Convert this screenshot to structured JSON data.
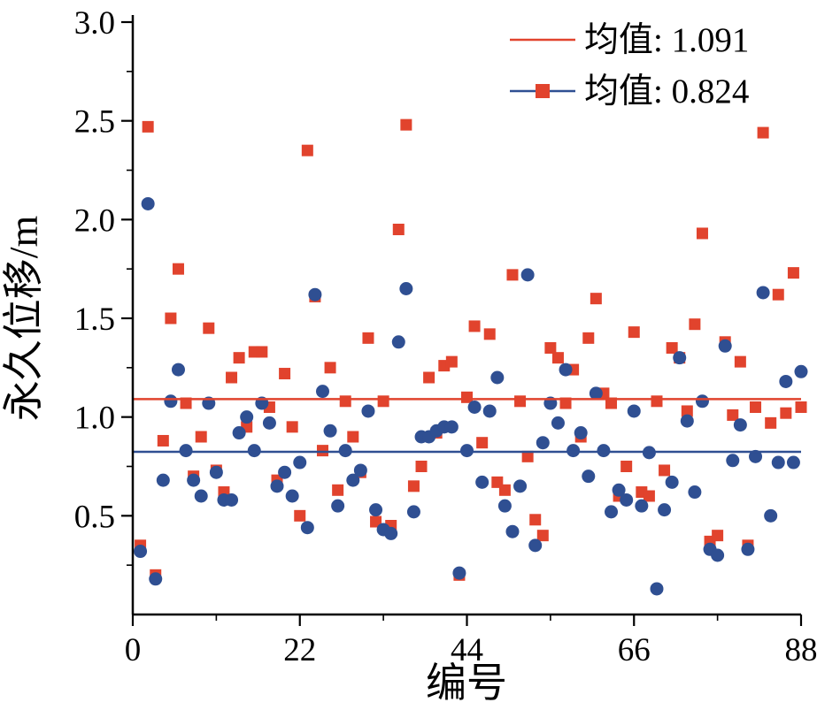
{
  "chart_data": {
    "type": "scatter",
    "title": "",
    "xlabel": "编号",
    "ylabel": "永久位移/m",
    "xlim": [
      0,
      88
    ],
    "ylim": [
      0,
      3.0
    ],
    "xticks": [
      0,
      22,
      44,
      66,
      88
    ],
    "yticks": [
      0.5,
      1.0,
      1.5,
      2.0,
      2.5,
      3.0
    ],
    "x_minor_ticks": [
      11,
      33,
      55,
      77
    ],
    "y_minor_ticks": [
      0.25,
      0.75,
      1.25,
      1.75,
      2.25,
      2.75
    ],
    "grid": false,
    "legend_position": "top-right",
    "series": [
      {
        "legend_label": "均值: 1.091",
        "marker": "square",
        "color": "#e1432d",
        "mean": 1.091,
        "mean_line_color": "#e1432d",
        "x": [
          1,
          2,
          3,
          4,
          5,
          6,
          7,
          8,
          9,
          10,
          11,
          12,
          13,
          14,
          15,
          16,
          17,
          18,
          19,
          20,
          21,
          22,
          23,
          24,
          25,
          26,
          27,
          28,
          29,
          30,
          31,
          32,
          33,
          34,
          35,
          36,
          37,
          38,
          39,
          40,
          41,
          42,
          43,
          44,
          45,
          46,
          47,
          48,
          49,
          50,
          51,
          52,
          53,
          54,
          55,
          56,
          57,
          58,
          59,
          60,
          61,
          62,
          63,
          64,
          65,
          66,
          67,
          68,
          69,
          70,
          71,
          72,
          73,
          74,
          75,
          76,
          77,
          78,
          79,
          80,
          81,
          82,
          83,
          84,
          85,
          86,
          87,
          88
        ],
        "y": [
          0.35,
          2.47,
          0.2,
          0.88,
          1.5,
          1.75,
          1.07,
          0.7,
          0.9,
          1.45,
          0.73,
          0.62,
          1.2,
          1.3,
          0.95,
          1.33,
          1.33,
          1.05,
          0.68,
          1.22,
          0.95,
          0.5,
          2.35,
          1.61,
          0.83,
          1.25,
          0.63,
          1.08,
          0.9,
          0.72,
          1.4,
          0.47,
          1.08,
          0.45,
          1.95,
          2.48,
          0.65,
          0.75,
          1.2,
          0.92,
          1.26,
          1.28,
          0.2,
          1.1,
          1.46,
          0.87,
          1.42,
          0.67,
          0.63,
          1.72,
          1.08,
          0.8,
          0.48,
          0.4,
          1.35,
          1.3,
          1.07,
          1.24,
          0.9,
          1.4,
          1.6,
          1.12,
          1.07,
          0.6,
          0.75,
          1.43,
          0.62,
          0.6,
          1.08,
          0.73,
          1.35,
          1.3,
          1.03,
          1.47,
          1.93,
          0.37,
          0.4,
          1.38,
          1.01,
          1.28,
          0.35,
          1.05,
          2.44,
          0.97,
          1.62,
          1.02,
          1.73,
          1.05
        ]
      },
      {
        "legend_label": "均值: 0.824",
        "marker": "circle",
        "color": "#2f4f92",
        "mean": 0.824,
        "mean_line_color": "#2f4f92",
        "x": [
          1,
          2,
          3,
          4,
          5,
          6,
          7,
          8,
          9,
          10,
          11,
          12,
          13,
          14,
          15,
          16,
          17,
          18,
          19,
          20,
          21,
          22,
          23,
          24,
          25,
          26,
          27,
          28,
          29,
          30,
          31,
          32,
          33,
          34,
          35,
          36,
          37,
          38,
          39,
          40,
          41,
          42,
          43,
          44,
          45,
          46,
          47,
          48,
          49,
          50,
          51,
          52,
          53,
          54,
          55,
          56,
          57,
          58,
          59,
          60,
          61,
          62,
          63,
          64,
          65,
          66,
          67,
          68,
          69,
          70,
          71,
          72,
          73,
          74,
          75,
          76,
          77,
          78,
          79,
          80,
          81,
          82,
          83,
          84,
          85,
          86,
          87,
          88
        ],
        "y": [
          0.32,
          2.08,
          0.18,
          0.68,
          1.08,
          1.24,
          0.83,
          0.68,
          0.6,
          1.07,
          0.72,
          0.58,
          0.58,
          0.92,
          1.0,
          0.83,
          1.07,
          0.97,
          0.65,
          0.72,
          0.6,
          0.77,
          0.44,
          1.62,
          1.13,
          0.93,
          0.55,
          0.83,
          0.68,
          0.73,
          1.03,
          0.53,
          0.43,
          0.41,
          1.38,
          1.65,
          0.52,
          0.9,
          0.9,
          0.93,
          0.95,
          0.95,
          0.21,
          0.83,
          1.05,
          0.67,
          1.03,
          1.2,
          0.55,
          0.42,
          0.65,
          1.72,
          0.35,
          0.87,
          1.07,
          0.97,
          1.24,
          0.83,
          0.92,
          0.7,
          1.12,
          0.83,
          0.52,
          0.63,
          0.58,
          1.03,
          0.55,
          0.82,
          0.13,
          0.53,
          0.67,
          1.3,
          0.98,
          0.62,
          1.08,
          0.33,
          0.3,
          1.36,
          0.78,
          0.96,
          0.33,
          0.8,
          1.63,
          0.5,
          0.77,
          1.18,
          0.77,
          1.23
        ]
      }
    ],
    "legend": [
      {
        "label": "均值: 1.091",
        "line_color": "#e1432d",
        "marker": "none"
      },
      {
        "label": "均值: 0.824",
        "line_color": "#2f4f92",
        "marker": "square",
        "marker_color": "#e1432d"
      }
    ]
  }
}
